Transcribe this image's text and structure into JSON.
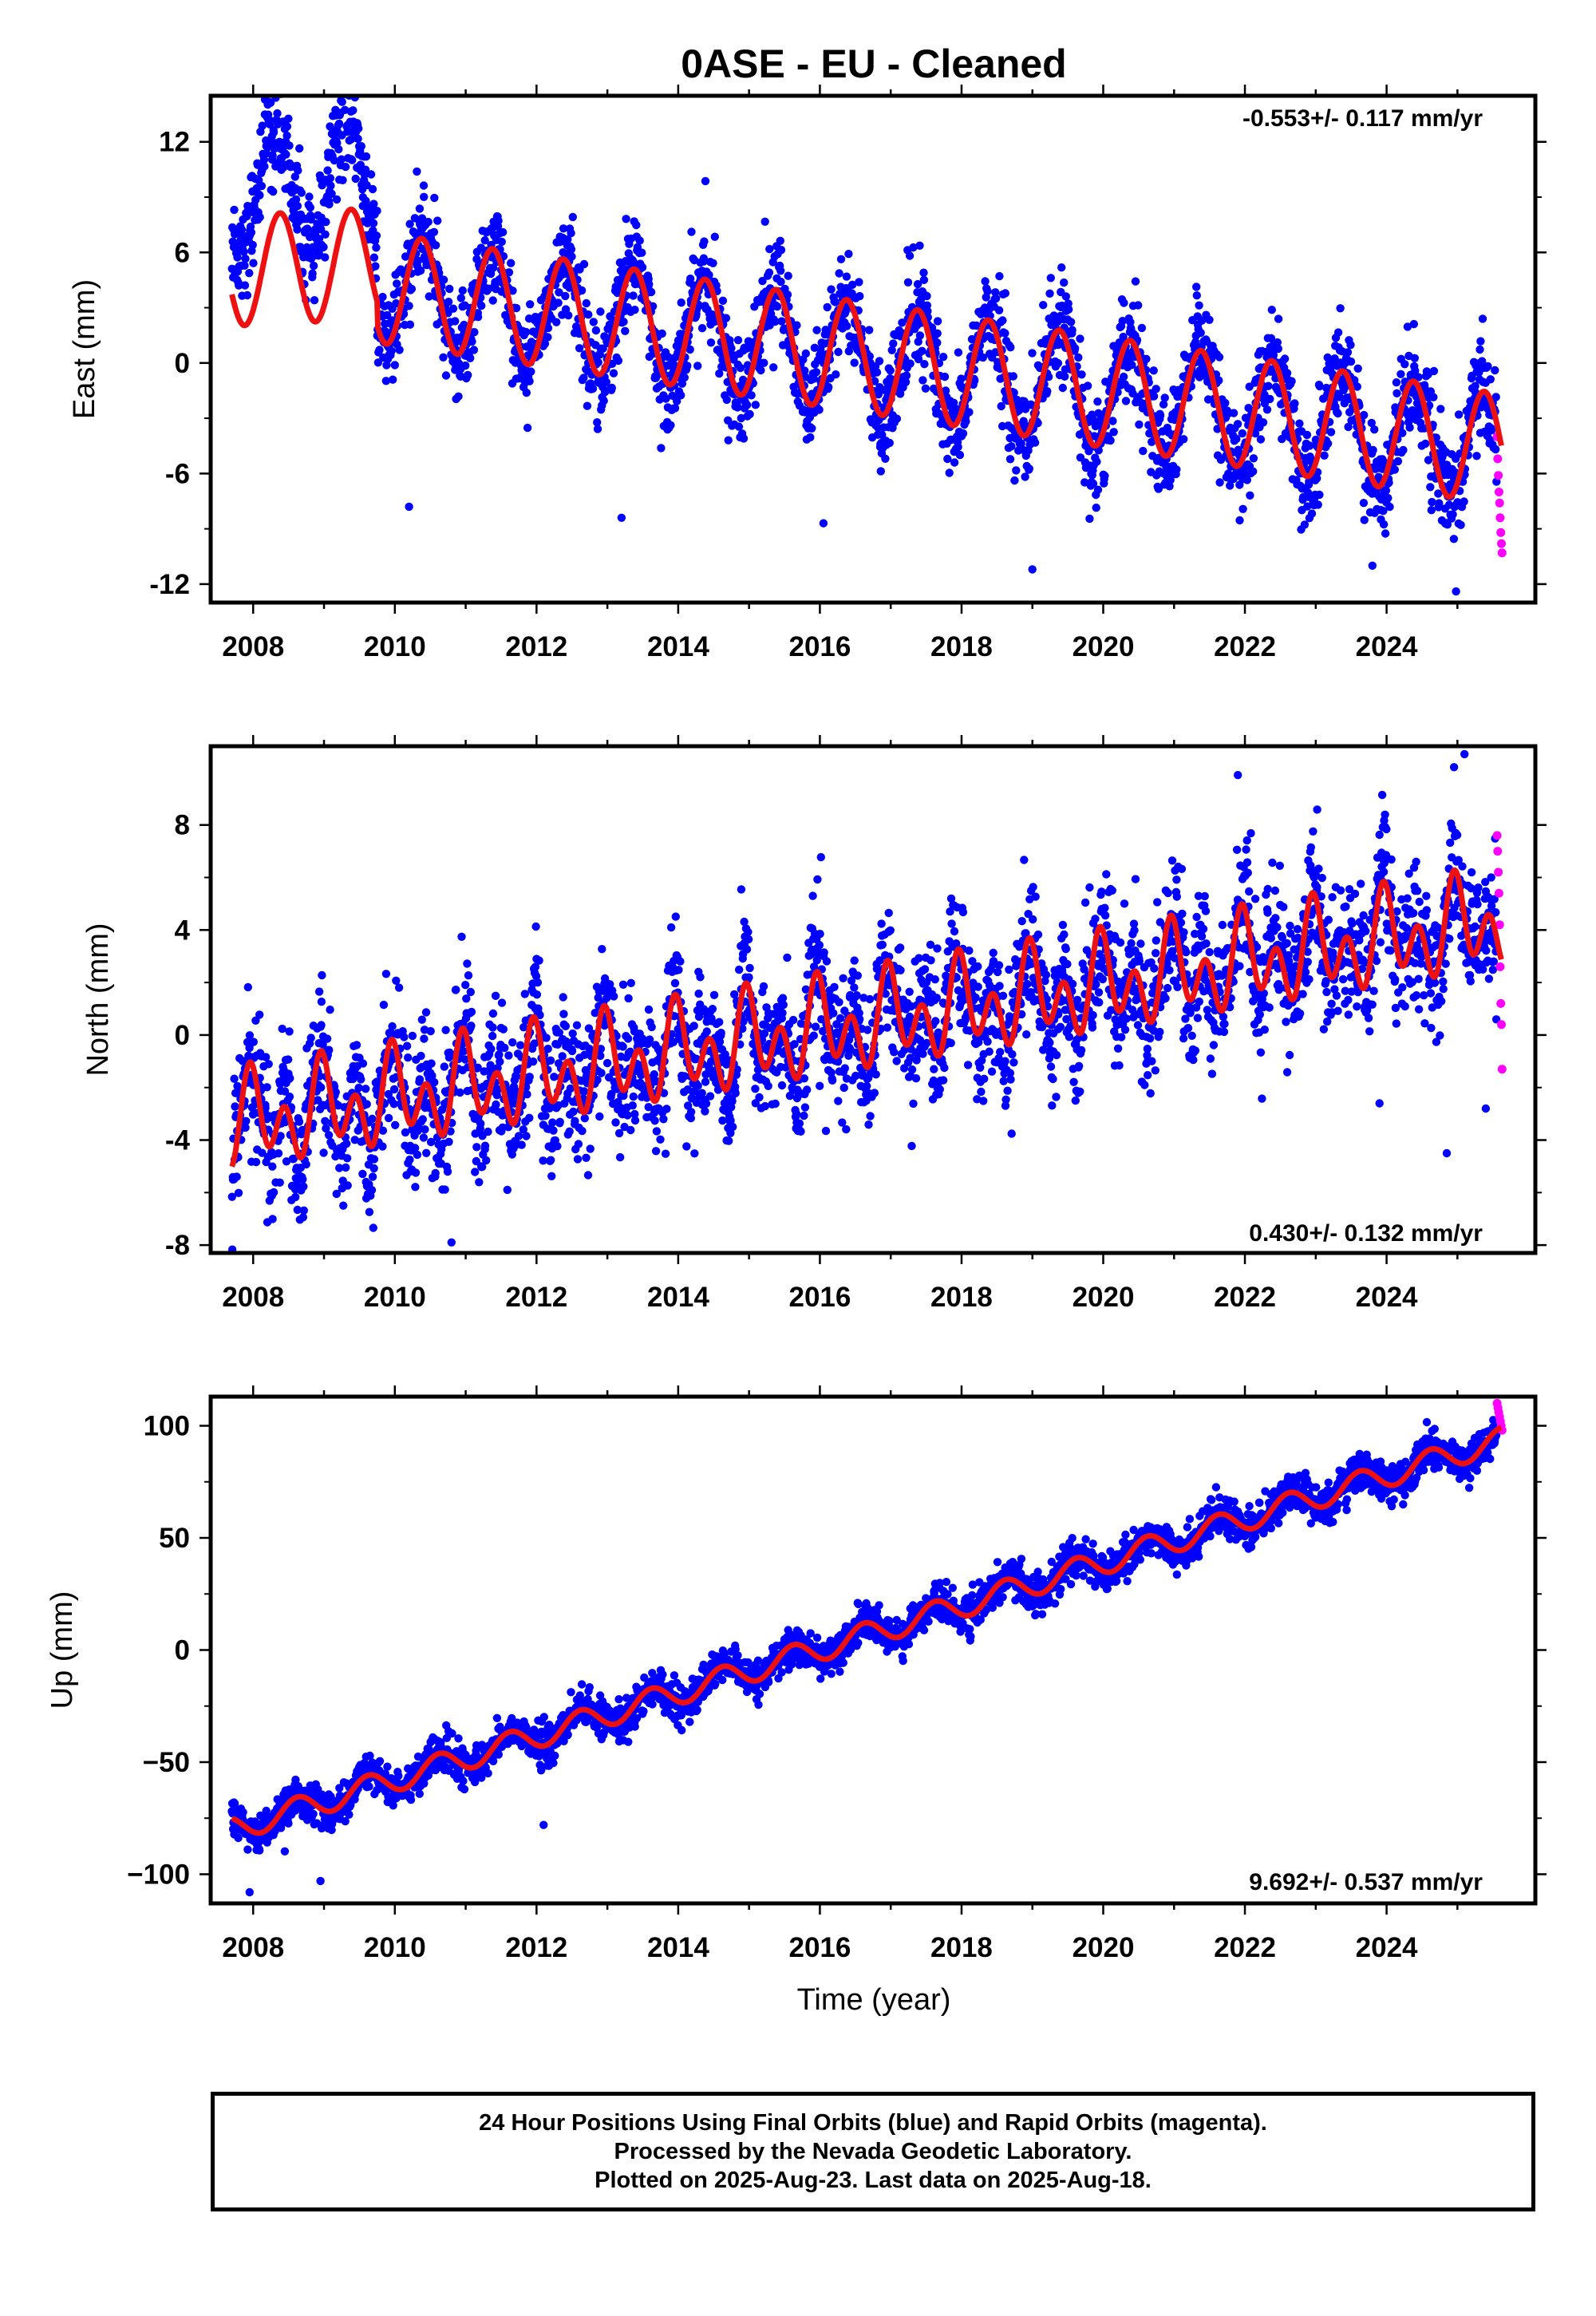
{
  "title": "0ASE  - EU - Cleaned",
  "xlabel": "Time (year)",
  "colors": {
    "final": "#0000ff",
    "rapid": "#ff00ff",
    "model": "#ee1111"
  },
  "chart_data": [
    {
      "type": "scatter",
      "ylabel": "East (mm)",
      "rate_label": "-0.553+/- 0.117 mm/yr",
      "xlim": [
        2007.4,
        2026.1
      ],
      "ylim": [
        -13,
        14.5
      ],
      "yticks": [
        12,
        6,
        0,
        -6,
        -12
      ],
      "yticklabels": [
        "12",
        "6",
        "0",
        "-6",
        "-12"
      ],
      "xticks": [
        2008,
        2010,
        2012,
        2014,
        2016,
        2018,
        2020,
        2022,
        2024
      ],
      "xticklabels": [
        "2008",
        "2010",
        "2012",
        "2014",
        "2016",
        "2018",
        "2020",
        "2022",
        "2024"
      ],
      "model": {
        "t0": 2007.7,
        "t1": 2025.62,
        "segments": [
          {
            "from": 2007.7,
            "to": 2009.75,
            "offset": 5.0,
            "rate": 0.2,
            "annual": 3.0,
            "phase": 2008.38
          },
          {
            "from": 2009.75,
            "to": 2025.62,
            "offset": 4.1,
            "rate": -0.553,
            "annual": 3.0,
            "phase": 2010.38
          }
        ]
      },
      "final_range": [
        2007.7,
        2025.55
      ],
      "rapid_range": [
        2025.56,
        2025.63
      ],
      "rapid_values": [
        -4.0,
        -5.2,
        -6.1,
        -7.0,
        -7.6,
        -8.4,
        -9.2,
        -9.8,
        -10.3
      ],
      "outliers": [
        [
          2013.2,
          -8.4
        ],
        [
          2016.05,
          -8.7
        ],
        [
          2019.0,
          -11.2
        ],
        [
          2023.8,
          -11.0
        ],
        [
          2024.98,
          -12.4
        ],
        [
          2010.2,
          -7.8
        ]
      ]
    },
    {
      "type": "scatter",
      "ylabel": "North (mm)",
      "rate_label": "0.430+/- 0.132 mm/yr",
      "xlim": [
        2007.4,
        2026.1
      ],
      "ylim": [
        -8.3,
        11
      ],
      "yticks": [
        8,
        4,
        0,
        -4,
        -8
      ],
      "yticklabels": [
        "8",
        "4",
        "0",
        "-4",
        "-8"
      ],
      "xticks": [
        2008,
        2010,
        2012,
        2014,
        2016,
        2018,
        2020,
        2022,
        2024
      ],
      "xticklabels": [
        "2008",
        "2010",
        "2012",
        "2014",
        "2016",
        "2018",
        "2020",
        "2022",
        "2024"
      ],
      "model": {
        "t0": 2007.7,
        "t1": 2025.62,
        "segments": [
          {
            "from": 2007.7,
            "to": 2025.62,
            "offset": -3.4,
            "rate": 0.43,
            "annual": 1.0,
            "phase": 2008.0,
            "semiannual": 1.3,
            "phase2": 2007.95
          }
        ]
      },
      "final_range": [
        2007.7,
        2025.55
      ],
      "rapid_range": [
        2025.56,
        2025.63
      ],
      "rapid_values": [
        7.6,
        7.0,
        6.2,
        5.4,
        4.2,
        2.6,
        1.2,
        0.4,
        -1.3
      ],
      "outliers": [
        [
          2010.8,
          -7.9
        ],
        [
          2024.85,
          -4.5
        ],
        [
          2023.9,
          -2.6
        ],
        [
          2025.4,
          -2.8
        ],
        [
          2025.1,
          10.7
        ],
        [
          2021.9,
          9.9
        ]
      ]
    },
    {
      "type": "scatter",
      "ylabel": "Up (mm)",
      "rate_label": "9.692+/- 0.537 mm/yr",
      "xlim": [
        2007.4,
        2026.1
      ],
      "ylim": [
        -113,
        113
      ],
      "yticks": [
        100,
        50,
        0,
        -50,
        -100
      ],
      "yticklabels": [
        "100",
        "50",
        "0",
        "−50",
        "−100"
      ],
      "xticks": [
        2008,
        2010,
        2012,
        2014,
        2016,
        2018,
        2020,
        2022,
        2024
      ],
      "xticklabels": [
        "2008",
        "2010",
        "2012",
        "2014",
        "2016",
        "2018",
        "2020",
        "2022",
        "2024"
      ],
      "model": {
        "t0": 2007.7,
        "t1": 2025.62,
        "segments": [
          {
            "from": 2007.7,
            "to": 2025.62,
            "offset": -80.0,
            "rate": 9.692,
            "annual": 5.5,
            "phase": 2007.62
          }
        ]
      },
      "final_range": [
        2007.7,
        2025.55
      ],
      "rapid_range": [
        2025.56,
        2025.63
      ],
      "rapid_values": [
        110,
        108,
        106,
        104,
        102,
        100,
        98
      ],
      "outliers": [
        [
          2007.95,
          -108
        ],
        [
          2008.95,
          -103
        ],
        [
          2012.1,
          -78
        ]
      ]
    }
  ],
  "footer": {
    "line1": "24 Hour Positions Using Final Orbits (blue) and Rapid Orbits (magenta).",
    "line2": "Processed by the Nevada Geodetic Laboratory.",
    "line3": "Plotted on 2025-Aug-23. Last data on 2025-Aug-18."
  }
}
